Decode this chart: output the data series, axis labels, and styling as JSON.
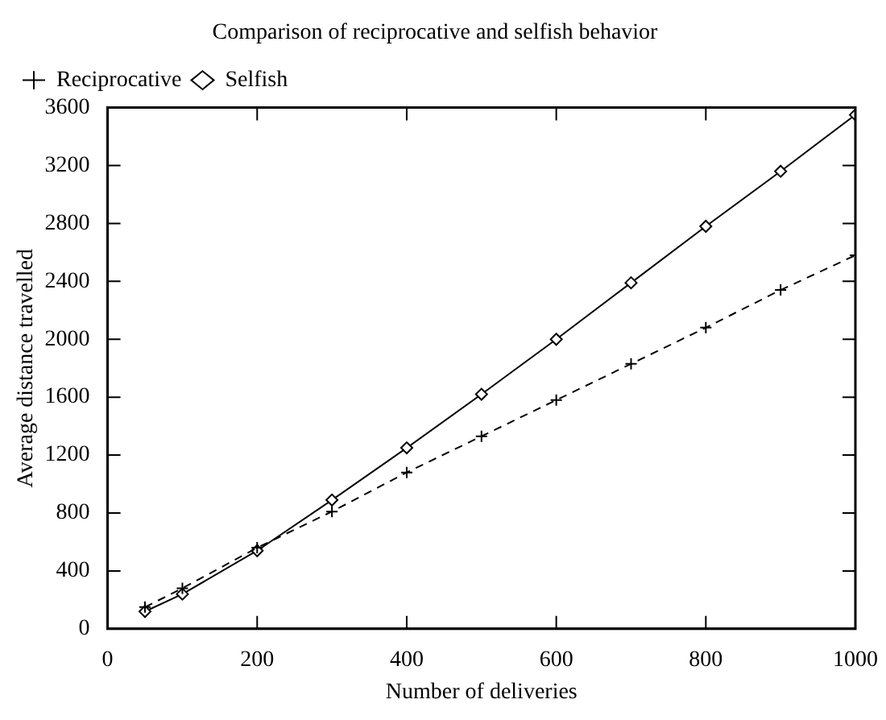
{
  "chart_data": {
    "type": "line",
    "title": "Comparison of reciprocative and selfish behavior",
    "xlabel": "Number of deliveries",
    "ylabel": "Average distance travelled",
    "x": [
      50,
      100,
      200,
      300,
      400,
      500,
      600,
      700,
      800,
      900,
      1000
    ],
    "series": [
      {
        "name": "Selfish",
        "color": "#000000",
        "marker": "diamond",
        "line_style": "solid",
        "values": [
          120,
          240,
          540,
          890,
          1250,
          1620,
          2000,
          2390,
          2780,
          3160,
          3550
        ]
      },
      {
        "name": "Reciprocative",
        "color": "#000000",
        "marker": "cross",
        "line_style": "dashed",
        "values": [
          150,
          280,
          560,
          810,
          1080,
          1330,
          1580,
          1830,
          2080,
          2340,
          2580
        ]
      }
    ],
    "xlim": [
      0,
      1000
    ],
    "xticks": [
      0,
      200,
      400,
      600,
      800,
      1000
    ],
    "ylim": [
      0,
      3600
    ],
    "yticks": [
      0,
      400,
      800,
      1200,
      1600,
      2000,
      2400,
      2800,
      3200,
      3600
    ],
    "legend": "top left"
  }
}
